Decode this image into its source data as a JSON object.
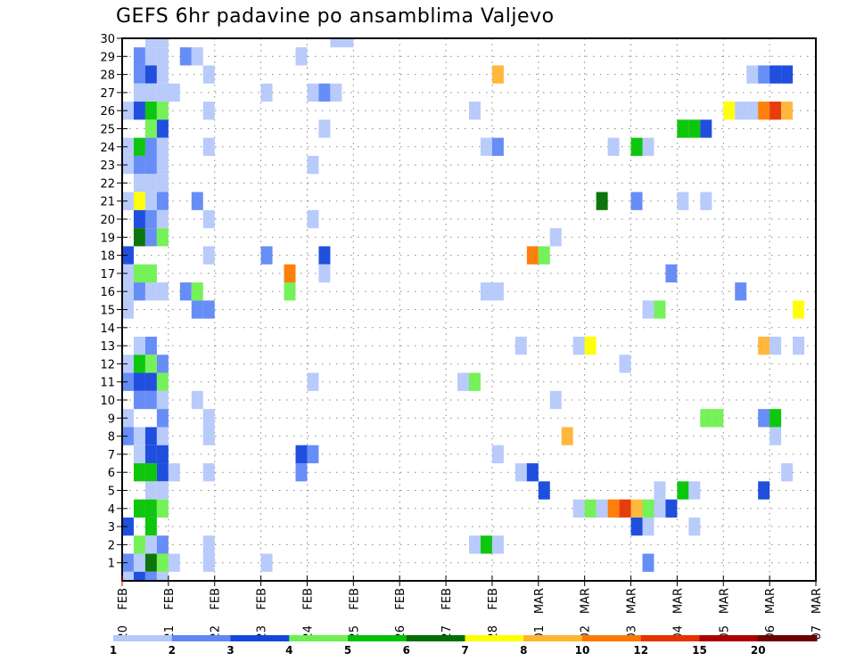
{
  "chart_data": {
    "type": "heatmap",
    "title": "GEFS 6hr padavine po ansamblima Valjevo",
    "xlabel": "",
    "ylabel": "",
    "x_ticks": [
      {
        "day": "20",
        "month": "FEB"
      },
      {
        "day": "21",
        "month": "FEB"
      },
      {
        "day": "22",
        "month": "FEB"
      },
      {
        "day": "23",
        "month": "FEB"
      },
      {
        "day": "24",
        "month": "FEB"
      },
      {
        "day": "25",
        "month": "FEB"
      },
      {
        "day": "26",
        "month": "FEB"
      },
      {
        "day": "27",
        "month": "FEB"
      },
      {
        "day": "28",
        "month": "FEB"
      },
      {
        "day": "01",
        "month": "MAR"
      },
      {
        "day": "02",
        "month": "MAR"
      },
      {
        "day": "03",
        "month": "MAR"
      },
      {
        "day": "04",
        "month": "MAR"
      },
      {
        "day": "05",
        "month": "MAR"
      },
      {
        "day": "06",
        "month": "MAR"
      },
      {
        "day": "07",
        "month": "MAR"
      }
    ],
    "x_steps_per_day": 4,
    "xlim_steps": [
      0,
      60
    ],
    "y_ticks": [
      "1",
      "2",
      "3",
      "4",
      "5",
      "6",
      "7",
      "8",
      "9",
      "10",
      "11",
      "12",
      "13",
      "14",
      "15",
      "16",
      "17",
      "18",
      "19",
      "20",
      "21",
      "22",
      "23",
      "24",
      "25",
      "26",
      "27",
      "28",
      "29",
      "30"
    ],
    "ylim": [
      0,
      30
    ],
    "grid": true,
    "colorbar": {
      "placement": "bottom",
      "labels": [
        "1",
        "2",
        "3",
        "4",
        "5",
        "6",
        "7",
        "8",
        "10",
        "12",
        "15",
        "20"
      ],
      "colors": [
        "#b4c8fa",
        "#5f87f5",
        "#1446dc",
        "#6ef050",
        "#00c300",
        "#006e00",
        "#ffff00",
        "#ffb432",
        "#ff7800",
        "#e63200",
        "#aa0000",
        "#6e0000"
      ]
    },
    "cells_note": "each cell: [step_index_from_20FEB_00Z, ensemble_member, color_bin_1_to_12]",
    "cells": [
      [
        3,
        30,
        1
      ],
      [
        4,
        30,
        1
      ],
      [
        19,
        30,
        1
      ],
      [
        20,
        30,
        1
      ],
      [
        2,
        29,
        2
      ],
      [
        3,
        29,
        1
      ],
      [
        4,
        29,
        1
      ],
      [
        6,
        29,
        2
      ],
      [
        7,
        29,
        1
      ],
      [
        16,
        29,
        1
      ],
      [
        2,
        28,
        2
      ],
      [
        3,
        28,
        3
      ],
      [
        4,
        28,
        1
      ],
      [
        8,
        28,
        1
      ],
      [
        33,
        28,
        8
      ],
      [
        55,
        28,
        1
      ],
      [
        56,
        28,
        2
      ],
      [
        57,
        28,
        3
      ],
      [
        58,
        28,
        3
      ],
      [
        2,
        27,
        1
      ],
      [
        3,
        27,
        1
      ],
      [
        4,
        27,
        1
      ],
      [
        5,
        27,
        1
      ],
      [
        13,
        27,
        1
      ],
      [
        17,
        27,
        1
      ],
      [
        18,
        27,
        2
      ],
      [
        19,
        27,
        1
      ],
      [
        1,
        26,
        1
      ],
      [
        2,
        26,
        3
      ],
      [
        3,
        26,
        5
      ],
      [
        4,
        26,
        4
      ],
      [
        8,
        26,
        1
      ],
      [
        31,
        26,
        1
      ],
      [
        53,
        26,
        7
      ],
      [
        54,
        26,
        1
      ],
      [
        55,
        26,
        1
      ],
      [
        56,
        26,
        9
      ],
      [
        57,
        26,
        10
      ],
      [
        58,
        26,
        8
      ],
      [
        3,
        25,
        4
      ],
      [
        4,
        25,
        3
      ],
      [
        18,
        25,
        1
      ],
      [
        49,
        25,
        5
      ],
      [
        50,
        25,
        5
      ],
      [
        51,
        25,
        3
      ],
      [
        1,
        24,
        1
      ],
      [
        2,
        24,
        5
      ],
      [
        3,
        24,
        2
      ],
      [
        4,
        24,
        1
      ],
      [
        8,
        24,
        1
      ],
      [
        32,
        24,
        1
      ],
      [
        33,
        24,
        2
      ],
      [
        43,
        24,
        1
      ],
      [
        45,
        24,
        5
      ],
      [
        46,
        24,
        1
      ],
      [
        1,
        23,
        1
      ],
      [
        2,
        23,
        2
      ],
      [
        3,
        23,
        2
      ],
      [
        4,
        23,
        1
      ],
      [
        17,
        23,
        1
      ],
      [
        2,
        22,
        1
      ],
      [
        3,
        22,
        1
      ],
      [
        4,
        22,
        1
      ],
      [
        1,
        21,
        1
      ],
      [
        2,
        21,
        7
      ],
      [
        3,
        21,
        1
      ],
      [
        4,
        21,
        2
      ],
      [
        7,
        21,
        2
      ],
      [
        42,
        21,
        6
      ],
      [
        45,
        21,
        2
      ],
      [
        49,
        21,
        1
      ],
      [
        51,
        21,
        1
      ],
      [
        2,
        20,
        3
      ],
      [
        3,
        20,
        2
      ],
      [
        4,
        20,
        1
      ],
      [
        8,
        20,
        1
      ],
      [
        17,
        20,
        1
      ],
      [
        2,
        19,
        6
      ],
      [
        3,
        19,
        2
      ],
      [
        4,
        19,
        4
      ],
      [
        38,
        19,
        1
      ],
      [
        1,
        18,
        3
      ],
      [
        8,
        18,
        1
      ],
      [
        13,
        18,
        2
      ],
      [
        18,
        18,
        3
      ],
      [
        36,
        18,
        9
      ],
      [
        37,
        18,
        4
      ],
      [
        1,
        17,
        1
      ],
      [
        2,
        17,
        4
      ],
      [
        3,
        17,
        4
      ],
      [
        15,
        17,
        9
      ],
      [
        18,
        17,
        1
      ],
      [
        48,
        17,
        2
      ],
      [
        1,
        16,
        1
      ],
      [
        2,
        16,
        2
      ],
      [
        3,
        16,
        1
      ],
      [
        4,
        16,
        1
      ],
      [
        6,
        16,
        2
      ],
      [
        7,
        16,
        4
      ],
      [
        15,
        16,
        4
      ],
      [
        32,
        16,
        1
      ],
      [
        33,
        16,
        1
      ],
      [
        54,
        16,
        2
      ],
      [
        1,
        15,
        1
      ],
      [
        7,
        15,
        2
      ],
      [
        8,
        15,
        2
      ],
      [
        46,
        15,
        1
      ],
      [
        47,
        15,
        4
      ],
      [
        59,
        15,
        7
      ],
      [
        2,
        13,
        1
      ],
      [
        3,
        13,
        2
      ],
      [
        35,
        13,
        1
      ],
      [
        40,
        13,
        1
      ],
      [
        41,
        13,
        7
      ],
      [
        56,
        13,
        8
      ],
      [
        57,
        13,
        1
      ],
      [
        59,
        13,
        1
      ],
      [
        1,
        12,
        1
      ],
      [
        2,
        12,
        5
      ],
      [
        3,
        12,
        4
      ],
      [
        4,
        12,
        2
      ],
      [
        44,
        12,
        1
      ],
      [
        1,
        11,
        2
      ],
      [
        2,
        11,
        3
      ],
      [
        3,
        11,
        3
      ],
      [
        4,
        11,
        4
      ],
      [
        17,
        11,
        1
      ],
      [
        30,
        11,
        1
      ],
      [
        31,
        11,
        4
      ],
      [
        2,
        10,
        2
      ],
      [
        3,
        10,
        2
      ],
      [
        4,
        10,
        1
      ],
      [
        7,
        10,
        1
      ],
      [
        38,
        10,
        1
      ],
      [
        1,
        9,
        1
      ],
      [
        4,
        9,
        2
      ],
      [
        8,
        9,
        1
      ],
      [
        51,
        9,
        4
      ],
      [
        52,
        9,
        4
      ],
      [
        56,
        9,
        2
      ],
      [
        57,
        9,
        5
      ],
      [
        1,
        8,
        2
      ],
      [
        2,
        8,
        1
      ],
      [
        3,
        8,
        3
      ],
      [
        4,
        8,
        1
      ],
      [
        8,
        8,
        1
      ],
      [
        39,
        8,
        8
      ],
      [
        57,
        8,
        1
      ],
      [
        2,
        7,
        1
      ],
      [
        3,
        7,
        3
      ],
      [
        4,
        7,
        3
      ],
      [
        16,
        7,
        3
      ],
      [
        17,
        7,
        2
      ],
      [
        33,
        7,
        1
      ],
      [
        2,
        6,
        5
      ],
      [
        3,
        6,
        5
      ],
      [
        4,
        6,
        3
      ],
      [
        5,
        6,
        1
      ],
      [
        8,
        6,
        1
      ],
      [
        16,
        6,
        2
      ],
      [
        35,
        6,
        1
      ],
      [
        36,
        6,
        3
      ],
      [
        58,
        6,
        1
      ],
      [
        3,
        5,
        1
      ],
      [
        4,
        5,
        1
      ],
      [
        37,
        5,
        3
      ],
      [
        47,
        5,
        1
      ],
      [
        49,
        5,
        5
      ],
      [
        50,
        5,
        1
      ],
      [
        56,
        5,
        3
      ],
      [
        2,
        4,
        5
      ],
      [
        3,
        4,
        5
      ],
      [
        4,
        4,
        4
      ],
      [
        40,
        4,
        1
      ],
      [
        41,
        4,
        4
      ],
      [
        42,
        4,
        1
      ],
      [
        43,
        4,
        9
      ],
      [
        44,
        4,
        10
      ],
      [
        45,
        4,
        8
      ],
      [
        46,
        4,
        4
      ],
      [
        47,
        4,
        1
      ],
      [
        48,
        4,
        3
      ],
      [
        1,
        3,
        3
      ],
      [
        3,
        3,
        5
      ],
      [
        45,
        3,
        3
      ],
      [
        46,
        3,
        1
      ],
      [
        50,
        3,
        1
      ],
      [
        2,
        2,
        4
      ],
      [
        3,
        2,
        1
      ],
      [
        4,
        2,
        2
      ],
      [
        8,
        2,
        1
      ],
      [
        31,
        2,
        1
      ],
      [
        32,
        2,
        5
      ],
      [
        33,
        2,
        1
      ],
      [
        1,
        1,
        2
      ],
      [
        2,
        1,
        1
      ],
      [
        3,
        1,
        6
      ],
      [
        4,
        1,
        4
      ],
      [
        5,
        1,
        1
      ],
      [
        8,
        1,
        1
      ],
      [
        13,
        1,
        1
      ],
      [
        46,
        1,
        2
      ],
      [
        1,
        0,
        1
      ],
      [
        2,
        0,
        3
      ],
      [
        3,
        0,
        2
      ],
      [
        4,
        0,
        1
      ]
    ]
  }
}
